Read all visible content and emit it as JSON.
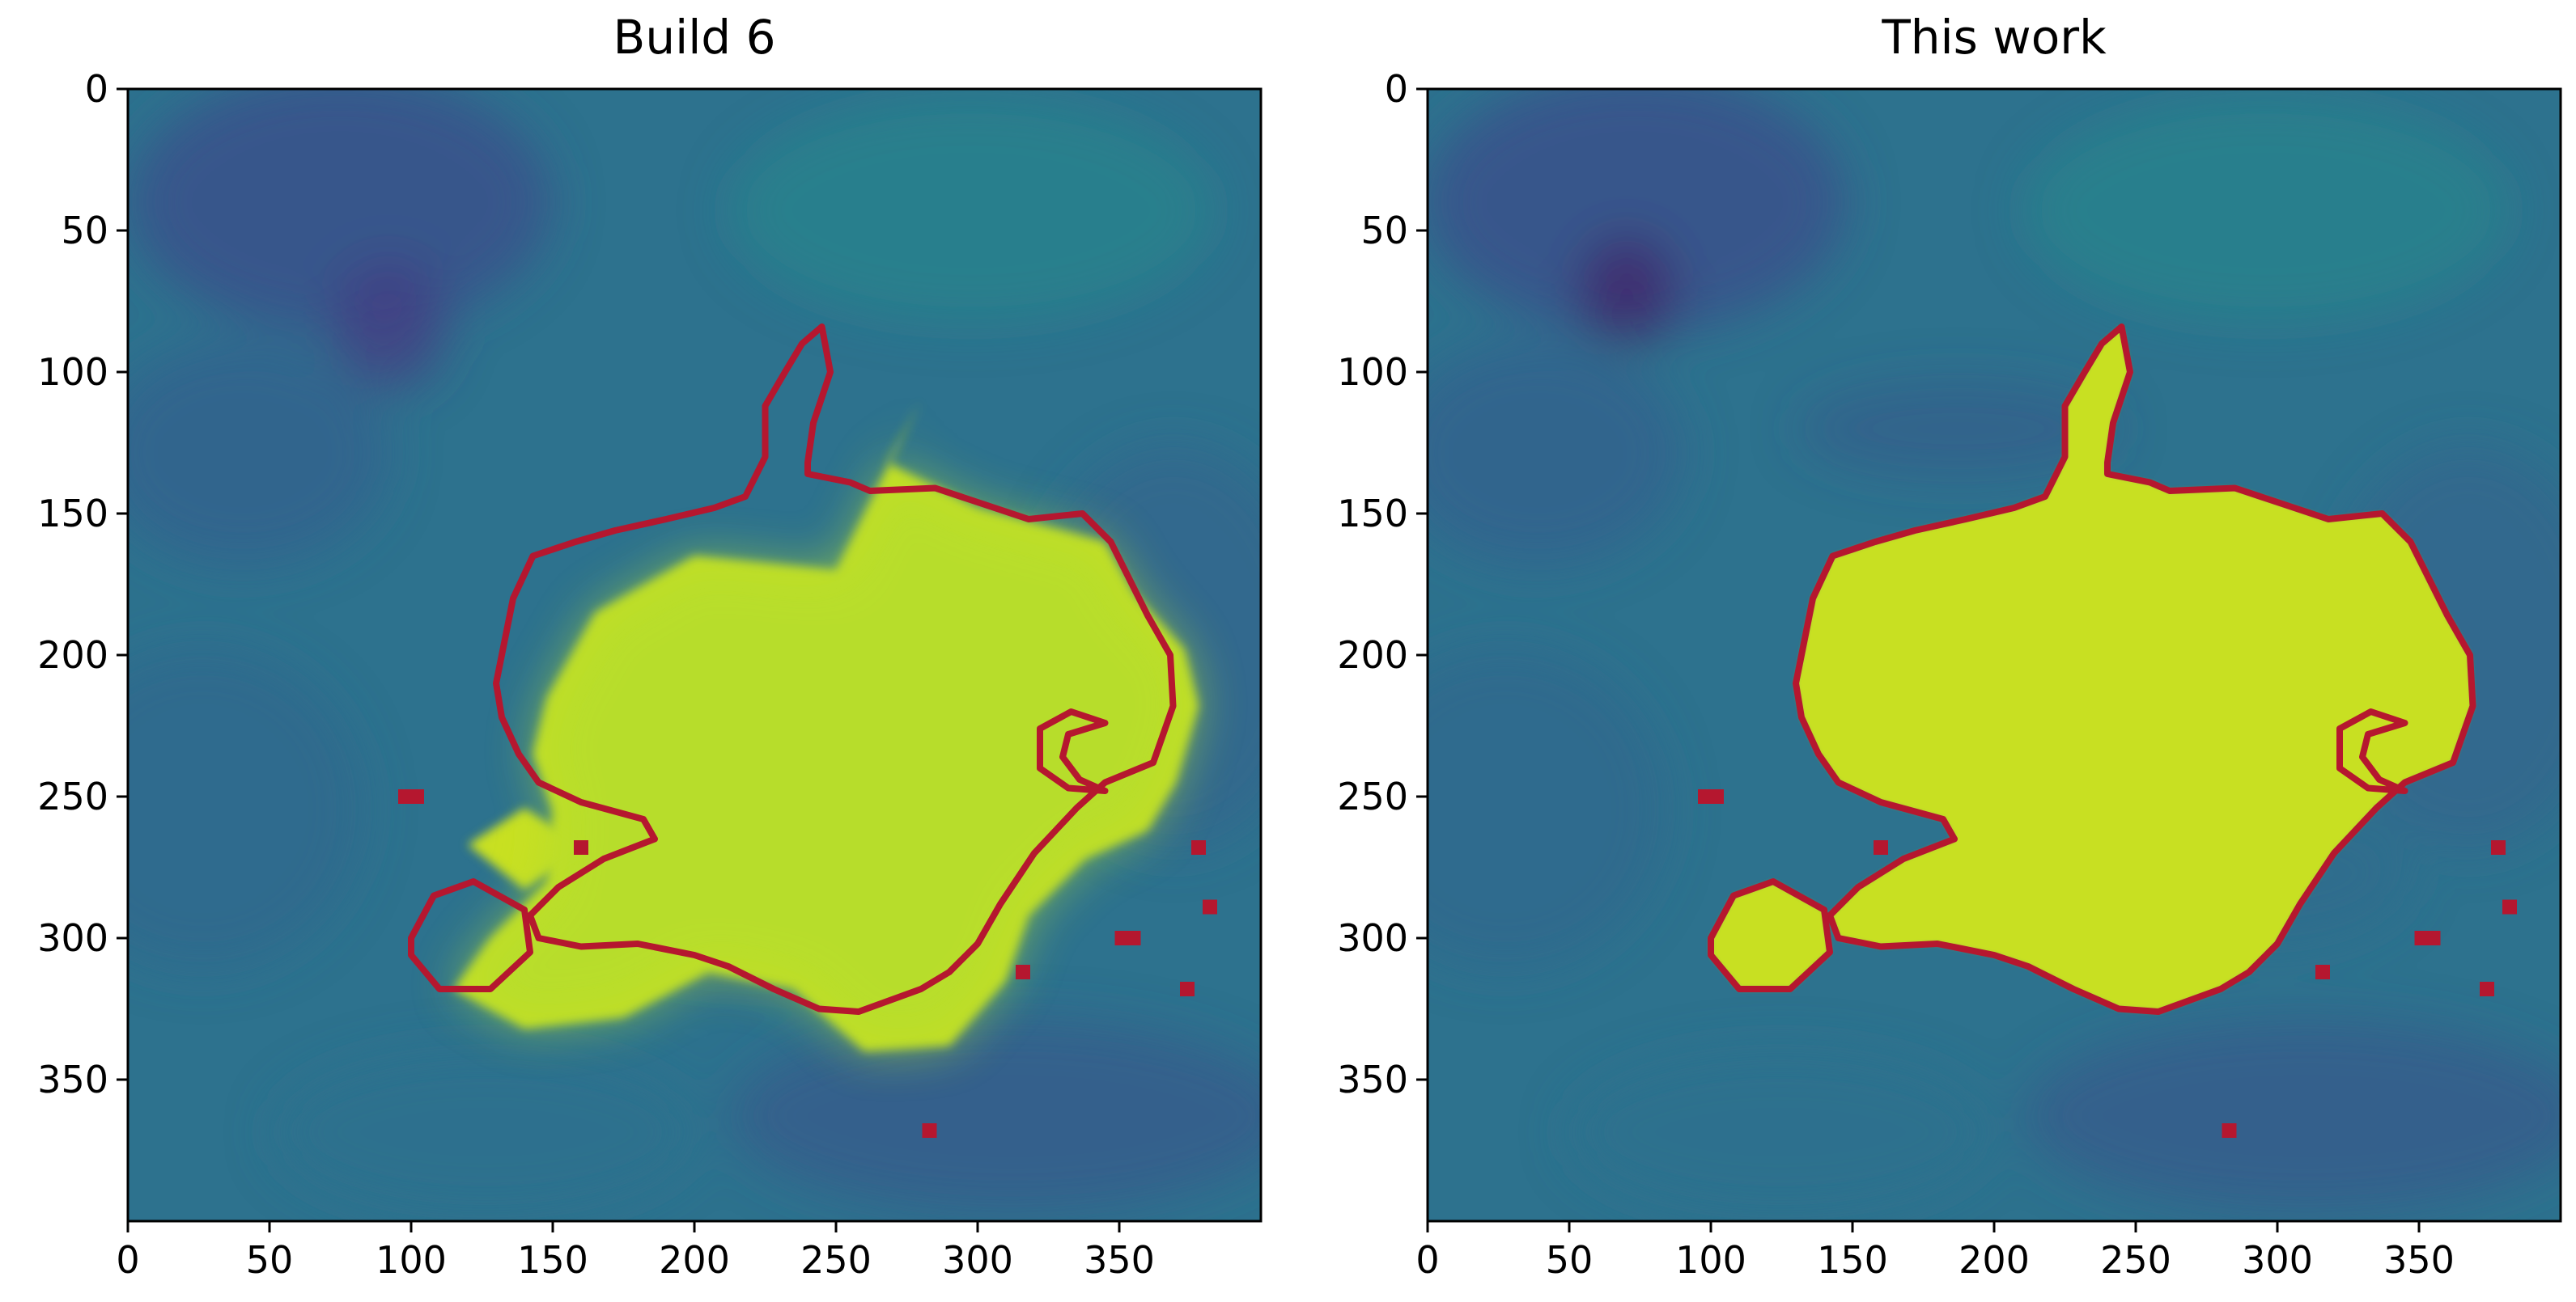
{
  "chart_data": [
    {
      "type": "heatmap",
      "title": "Build 6",
      "xlim": [
        0,
        400
      ],
      "ylim": [
        400,
        0
      ],
      "xticks": [
        0,
        50,
        100,
        150,
        200,
        250,
        300,
        350
      ],
      "yticks": [
        0,
        50,
        100,
        150,
        200,
        250,
        300,
        350
      ],
      "colormap": "viridis",
      "contour_color": "#b5172f",
      "bright_region": [
        [
          280,
          110
        ],
        [
          250,
          170
        ],
        [
          200,
          165
        ],
        [
          165,
          185
        ],
        [
          148,
          215
        ],
        [
          143,
          235
        ],
        [
          150,
          255
        ],
        [
          148,
          280
        ],
        [
          128,
          300
        ],
        [
          115,
          318
        ],
        [
          140,
          332
        ],
        [
          175,
          328
        ],
        [
          205,
          312
        ],
        [
          235,
          318
        ],
        [
          260,
          340
        ],
        [
          290,
          338
        ],
        [
          310,
          315
        ],
        [
          318,
          292
        ],
        [
          338,
          272
        ],
        [
          360,
          262
        ],
        [
          370,
          245
        ],
        [
          378,
          218
        ],
        [
          373,
          198
        ],
        [
          355,
          178
        ],
        [
          345,
          160
        ],
        [
          300,
          148
        ],
        [
          268,
          132
        ]
      ],
      "bright_blob_extra": [
        [
          120,
          267
        ],
        [
          140,
          254
        ],
        [
          162,
          268
        ],
        [
          140,
          283
        ]
      ],
      "contour": [
        [
          245,
          84
        ],
        [
          248,
          100
        ],
        [
          242,
          118
        ],
        [
          240,
          132
        ],
        [
          240,
          136
        ],
        [
          255,
          139
        ],
        [
          262,
          142
        ],
        [
          285,
          141
        ],
        [
          300,
          146
        ],
        [
          318,
          152
        ],
        [
          337,
          150
        ],
        [
          347,
          160
        ],
        [
          352,
          170
        ],
        [
          360,
          186
        ],
        [
          368,
          200
        ],
        [
          369,
          218
        ],
        [
          362,
          238
        ],
        [
          345,
          245
        ],
        [
          335,
          254
        ],
        [
          320,
          270
        ],
        [
          308,
          288
        ],
        [
          300,
          302
        ],
        [
          290,
          312
        ],
        [
          280,
          318
        ],
        [
          258,
          326
        ],
        [
          244,
          325
        ],
        [
          228,
          318
        ],
        [
          212,
          310
        ],
        [
          200,
          306
        ],
        [
          180,
          302
        ],
        [
          160,
          303
        ],
        [
          145,
          300
        ],
        [
          142,
          292
        ],
        [
          152,
          282
        ],
        [
          168,
          272
        ],
        [
          186,
          265
        ],
        [
          182,
          258
        ],
        [
          160,
          252
        ],
        [
          145,
          245
        ],
        [
          138,
          235
        ],
        [
          132,
          222
        ],
        [
          130,
          210
        ],
        [
          133,
          195
        ],
        [
          136,
          180
        ],
        [
          143,
          165
        ],
        [
          158,
          160
        ],
        [
          172,
          156
        ],
        [
          190,
          152
        ],
        [
          207,
          148
        ],
        [
          218,
          144
        ],
        [
          225,
          130
        ],
        [
          225,
          112
        ],
        [
          232,
          100
        ],
        [
          238,
          90
        ],
        [
          245,
          84
        ]
      ],
      "contour_small_left": [
        [
          100,
          300
        ],
        [
          108,
          285
        ],
        [
          122,
          280
        ],
        [
          140,
          290
        ],
        [
          142,
          305
        ],
        [
          128,
          318
        ],
        [
          110,
          318
        ],
        [
          100,
          306
        ],
        [
          100,
          300
        ]
      ],
      "contour_c_shape": [
        [
          345,
          224
        ],
        [
          333,
          220
        ],
        [
          322,
          226
        ],
        [
          322,
          240
        ],
        [
          332,
          247
        ],
        [
          345,
          248
        ],
        [
          336,
          244
        ],
        [
          330,
          236
        ],
        [
          332,
          228
        ],
        [
          345,
          224
        ]
      ],
      "scatter_marks": [
        [
          98,
          250
        ],
        [
          102,
          250
        ],
        [
          160,
          268
        ],
        [
          316,
          312
        ],
        [
          351,
          300
        ],
        [
          355,
          300
        ],
        [
          374,
          318
        ],
        [
          378,
          268
        ],
        [
          382,
          289
        ],
        [
          283,
          368
        ]
      ]
    },
    {
      "type": "heatmap",
      "title": "This work",
      "xlim": [
        0,
        400
      ],
      "ylim": [
        400,
        0
      ],
      "xticks": [
        0,
        50,
        100,
        150,
        200,
        250,
        300,
        350
      ],
      "yticks": [
        0,
        50,
        100,
        150,
        200,
        250,
        300,
        350
      ],
      "colormap": "viridis",
      "contour_color": "#b5172f",
      "bright_region": [
        [
          245,
          84
        ],
        [
          248,
          100
        ],
        [
          242,
          118
        ],
        [
          240,
          132
        ],
        [
          240,
          136
        ],
        [
          255,
          139
        ],
        [
          262,
          142
        ],
        [
          285,
          141
        ],
        [
          300,
          146
        ],
        [
          318,
          152
        ],
        [
          337,
          150
        ],
        [
          347,
          160
        ],
        [
          352,
          170
        ],
        [
          360,
          186
        ],
        [
          368,
          200
        ],
        [
          369,
          218
        ],
        [
          362,
          238
        ],
        [
          345,
          245
        ],
        [
          335,
          254
        ],
        [
          320,
          270
        ],
        [
          308,
          288
        ],
        [
          300,
          302
        ],
        [
          290,
          312
        ],
        [
          280,
          318
        ],
        [
          258,
          326
        ],
        [
          244,
          325
        ],
        [
          228,
          318
        ],
        [
          212,
          310
        ],
        [
          200,
          306
        ],
        [
          180,
          302
        ],
        [
          160,
          303
        ],
        [
          145,
          300
        ],
        [
          142,
          292
        ],
        [
          152,
          282
        ],
        [
          168,
          272
        ],
        [
          186,
          265
        ],
        [
          182,
          258
        ],
        [
          160,
          252
        ],
        [
          145,
          245
        ],
        [
          138,
          235
        ],
        [
          132,
          222
        ],
        [
          130,
          210
        ],
        [
          133,
          195
        ],
        [
          136,
          180
        ],
        [
          143,
          165
        ],
        [
          158,
          160
        ],
        [
          172,
          156
        ],
        [
          190,
          152
        ],
        [
          207,
          148
        ],
        [
          218,
          144
        ],
        [
          225,
          130
        ],
        [
          225,
          112
        ],
        [
          232,
          100
        ],
        [
          238,
          90
        ],
        [
          245,
          84
        ]
      ],
      "bright_blob_extra": [
        [
          100,
          300
        ],
        [
          108,
          285
        ],
        [
          122,
          280
        ],
        [
          140,
          290
        ],
        [
          142,
          305
        ],
        [
          128,
          318
        ],
        [
          110,
          318
        ],
        [
          100,
          306
        ],
        [
          100,
          300
        ]
      ],
      "contour": [
        [
          245,
          84
        ],
        [
          248,
          100
        ],
        [
          242,
          118
        ],
        [
          240,
          132
        ],
        [
          240,
          136
        ],
        [
          255,
          139
        ],
        [
          262,
          142
        ],
        [
          285,
          141
        ],
        [
          300,
          146
        ],
        [
          318,
          152
        ],
        [
          337,
          150
        ],
        [
          347,
          160
        ],
        [
          352,
          170
        ],
        [
          360,
          186
        ],
        [
          368,
          200
        ],
        [
          369,
          218
        ],
        [
          362,
          238
        ],
        [
          345,
          245
        ],
        [
          335,
          254
        ],
        [
          320,
          270
        ],
        [
          308,
          288
        ],
        [
          300,
          302
        ],
        [
          290,
          312
        ],
        [
          280,
          318
        ],
        [
          258,
          326
        ],
        [
          244,
          325
        ],
        [
          228,
          318
        ],
        [
          212,
          310
        ],
        [
          200,
          306
        ],
        [
          180,
          302
        ],
        [
          160,
          303
        ],
        [
          145,
          300
        ],
        [
          142,
          292
        ],
        [
          152,
          282
        ],
        [
          168,
          272
        ],
        [
          186,
          265
        ],
        [
          182,
          258
        ],
        [
          160,
          252
        ],
        [
          145,
          245
        ],
        [
          138,
          235
        ],
        [
          132,
          222
        ],
        [
          130,
          210
        ],
        [
          133,
          195
        ],
        [
          136,
          180
        ],
        [
          143,
          165
        ],
        [
          158,
          160
        ],
        [
          172,
          156
        ],
        [
          190,
          152
        ],
        [
          207,
          148
        ],
        [
          218,
          144
        ],
        [
          225,
          130
        ],
        [
          225,
          112
        ],
        [
          232,
          100
        ],
        [
          238,
          90
        ],
        [
          245,
          84
        ]
      ],
      "contour_small_left": [
        [
          100,
          300
        ],
        [
          108,
          285
        ],
        [
          122,
          280
        ],
        [
          140,
          290
        ],
        [
          142,
          305
        ],
        [
          128,
          318
        ],
        [
          110,
          318
        ],
        [
          100,
          306
        ],
        [
          100,
          300
        ]
      ],
      "contour_c_shape": [
        [
          345,
          224
        ],
        [
          333,
          220
        ],
        [
          322,
          226
        ],
        [
          322,
          240
        ],
        [
          332,
          247
        ],
        [
          345,
          248
        ],
        [
          336,
          244
        ],
        [
          330,
          236
        ],
        [
          332,
          228
        ],
        [
          345,
          224
        ]
      ],
      "scatter_marks": [
        [
          98,
          250
        ],
        [
          102,
          250
        ],
        [
          160,
          268
        ],
        [
          316,
          312
        ],
        [
          351,
          300
        ],
        [
          355,
          300
        ],
        [
          374,
          318
        ],
        [
          378,
          268
        ],
        [
          382,
          289
        ],
        [
          283,
          368
        ]
      ]
    }
  ]
}
